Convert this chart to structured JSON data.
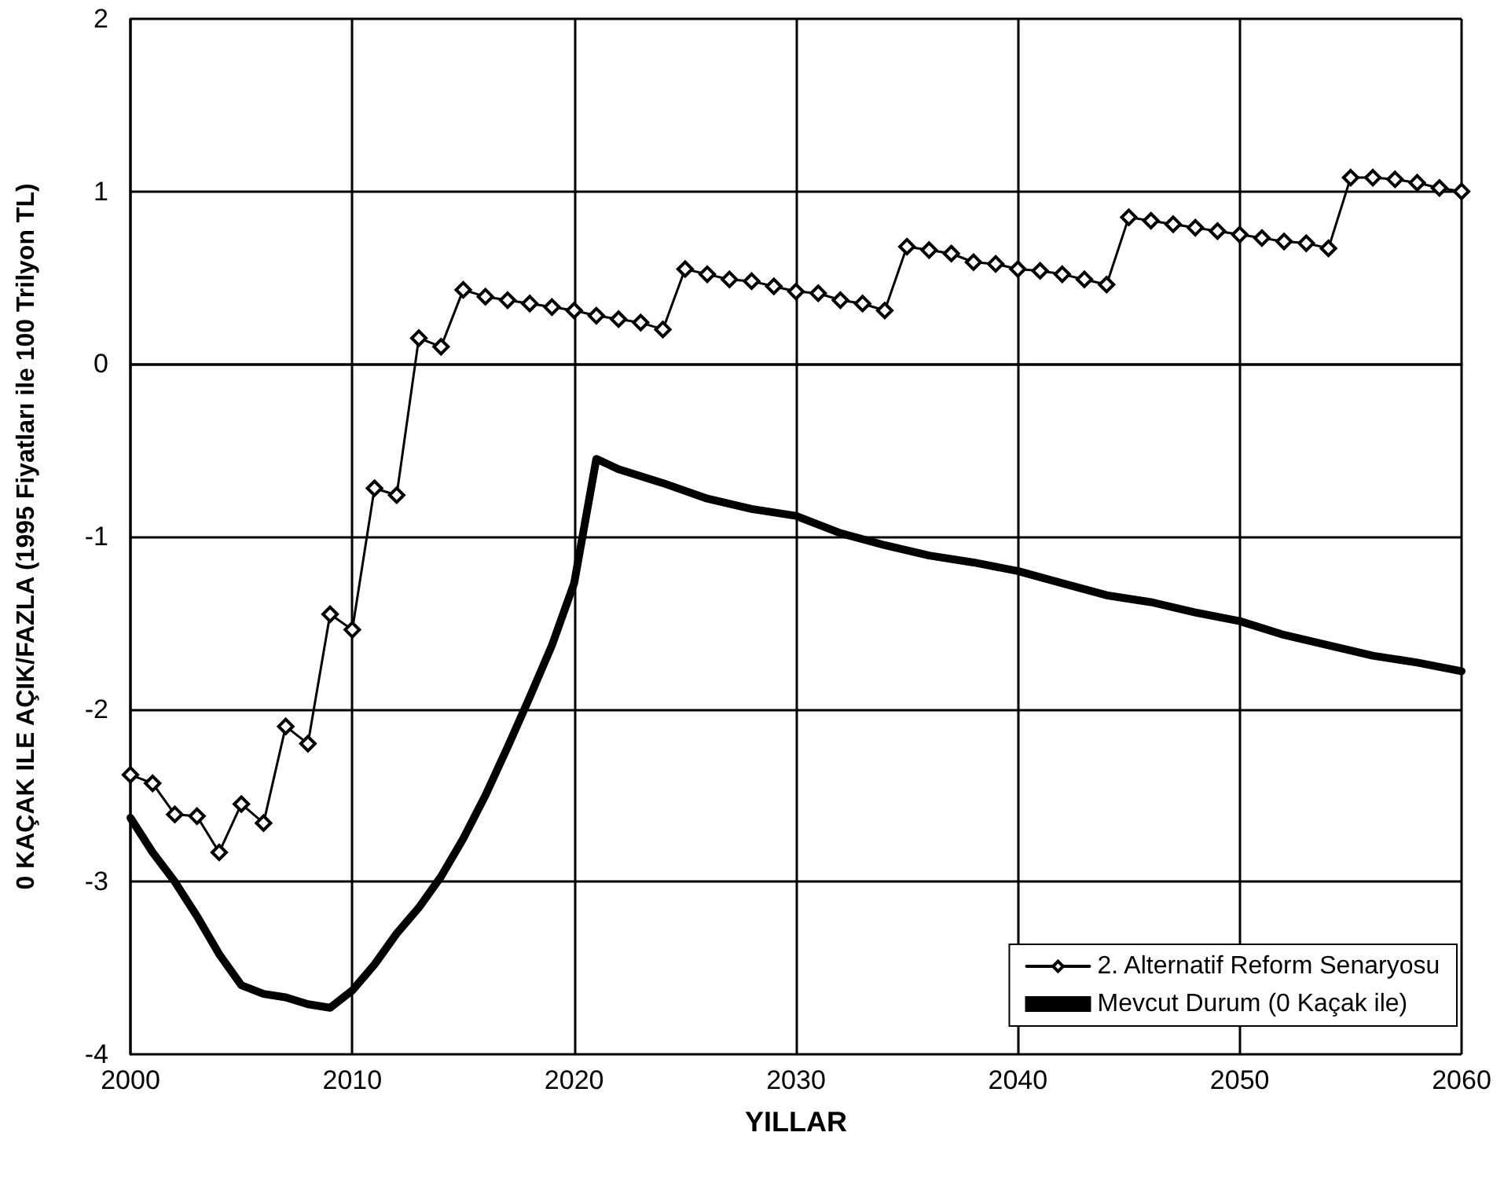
{
  "chart_data": {
    "type": "line",
    "xlabel": "YILLAR",
    "ylabel": "0 KAÇAK ILE AÇIK/FAZLA (1995 Fiyatları ile 100 Trilyon TL)",
    "x": [
      2000,
      2001,
      2002,
      2003,
      2004,
      2005,
      2006,
      2007,
      2008,
      2009,
      2010,
      2011,
      2012,
      2013,
      2014,
      2015,
      2016,
      2017,
      2018,
      2019,
      2020,
      2021,
      2022,
      2023,
      2024,
      2025,
      2026,
      2027,
      2028,
      2029,
      2030,
      2031,
      2032,
      2033,
      2034,
      2035,
      2036,
      2037,
      2038,
      2039,
      2040,
      2041,
      2042,
      2043,
      2044,
      2045,
      2046,
      2047,
      2048,
      2049,
      2050,
      2051,
      2052,
      2053,
      2054,
      2055,
      2056,
      2057,
      2058,
      2059,
      2060
    ],
    "series": [
      {
        "name": "2. Alternatif Reform Senaryosu",
        "color": "#000000",
        "marker": "diamond",
        "values": [
          -2.38,
          -2.43,
          -2.61,
          -2.62,
          -2.83,
          -2.55,
          -2.66,
          -2.1,
          -2.2,
          -1.45,
          -1.54,
          -0.72,
          -0.76,
          0.15,
          0.1,
          0.43,
          0.39,
          0.37,
          0.35,
          0.33,
          0.31,
          0.28,
          0.26,
          0.24,
          0.2,
          0.55,
          0.52,
          0.49,
          0.48,
          0.45,
          0.42,
          0.41,
          0.37,
          0.35,
          0.31,
          0.68,
          0.66,
          0.64,
          0.59,
          0.58,
          0.55,
          0.54,
          0.52,
          0.49,
          0.46,
          0.85,
          0.83,
          0.81,
          0.79,
          0.77,
          0.75,
          0.73,
          0.71,
          0.7,
          0.67,
          1.08,
          1.08,
          1.07,
          1.05,
          1.02,
          1.0
        ]
      },
      {
        "name": "Mevcut Durum (0 Kaçak ile)",
        "color": "#000000",
        "marker": "none",
        "x": [
          2000,
          2001,
          2002,
          2003,
          2004,
          2005,
          2006,
          2007,
          2008,
          2009,
          2010,
          2011,
          2012,
          2013,
          2014,
          2015,
          2016,
          2017,
          2018,
          2019,
          2020,
          2021,
          2022,
          2024,
          2026,
          2028,
          2030,
          2032,
          2034,
          2036,
          2038,
          2040,
          2042,
          2044,
          2046,
          2048,
          2050,
          2052,
          2054,
          2056,
          2058,
          2060
        ],
        "values": [
          -2.63,
          -2.83,
          -3.0,
          -3.2,
          -3.42,
          -3.6,
          -3.65,
          -3.67,
          -3.71,
          -3.73,
          -3.63,
          -3.48,
          -3.3,
          -3.15,
          -2.97,
          -2.75,
          -2.5,
          -2.22,
          -1.93,
          -1.63,
          -1.27,
          -0.55,
          -0.61,
          -0.69,
          -0.78,
          -0.84,
          -0.88,
          -0.98,
          -1.05,
          -1.11,
          -1.15,
          -1.2,
          -1.27,
          -1.34,
          -1.38,
          -1.44,
          -1.49,
          -1.57,
          -1.63,
          -1.69,
          -1.73,
          -1.78
        ]
      }
    ],
    "xlim": [
      2000,
      2060
    ],
    "xticks": [
      2000,
      2010,
      2020,
      2030,
      2040,
      2050,
      2060
    ],
    "ylim": [
      -4,
      2
    ],
    "yticks": [
      -4,
      -3,
      -2,
      -1,
      0,
      1,
      2
    ],
    "grid": true,
    "legend": "bottom right"
  }
}
